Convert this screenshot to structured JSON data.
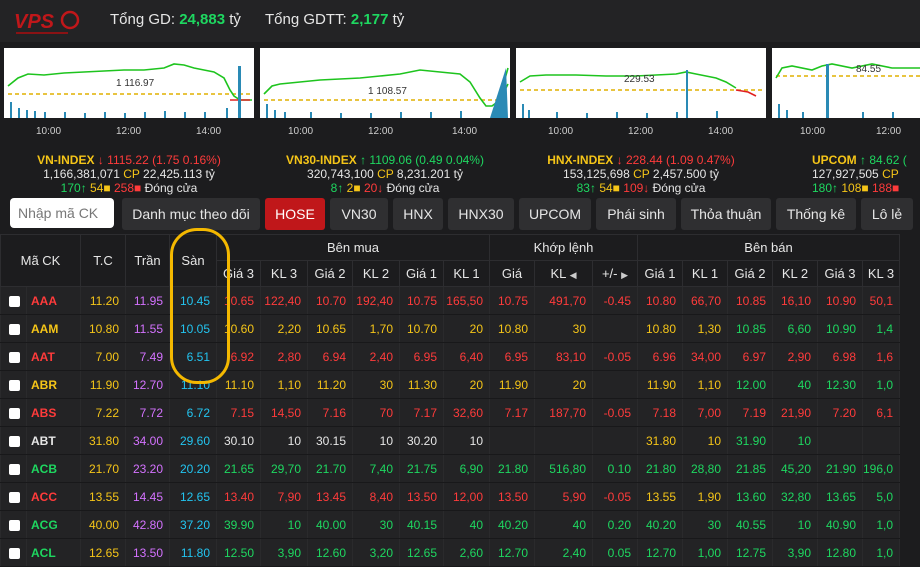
{
  "header": {
    "total_gd_label": "Tổng GD:",
    "total_gd_value": "24,883",
    "total_gd_unit": "tỷ",
    "total_gdtt_label": "Tổng GDTT:",
    "total_gdtt_value": "2,177",
    "total_gdtt_unit": "tỷ"
  },
  "indices": [
    {
      "name": "VN-INDEX",
      "value": "1115.22",
      "change": "(1.75  0.16%)",
      "direction": "down",
      "volume": "1,166,381,071",
      "cp_label": "CP",
      "val": "22,425.113",
      "val_unit": "tỷ",
      "adv": "170",
      "unch": "54",
      "dec": "258",
      "status": "Đóng cửa",
      "ref_label": "1 116.97",
      "times": [
        "10:00",
        "12:00",
        "14:00"
      ]
    },
    {
      "name": "VN30-INDEX",
      "value": "1109.06",
      "change": "(0.49  0.04%)",
      "direction": "up",
      "volume": "320,743,100",
      "cp_label": "CP",
      "val": "8,231.201",
      "val_unit": "tỷ",
      "adv": "8",
      "unch": "2",
      "dec": "20",
      "status": "Đóng cửa",
      "ref_label": "1 108.57",
      "times": [
        "10:00",
        "12:00",
        "14:00"
      ]
    },
    {
      "name": "HNX-INDEX",
      "value": "228.44",
      "change": "(1.09  0.47%)",
      "direction": "down",
      "volume": "153,125,698",
      "cp_label": "CP",
      "val": "2,457.500",
      "val_unit": "tỷ",
      "adv": "83",
      "unch": "54",
      "dec": "109",
      "status": "Đóng cửa",
      "ref_label": "229.53",
      "times": [
        "10:00",
        "12:00",
        "14:00"
      ]
    },
    {
      "name": "UPCOM",
      "value": "84.62",
      "change": "(",
      "direction": "up",
      "volume": "127,927,505",
      "cp_label": "CP",
      "val": "",
      "val_unit": "",
      "adv": "180",
      "unch": "108",
      "dec": "188",
      "status": "",
      "ref_label": "84.55",
      "times": [
        "10:00",
        "12:00"
      ]
    }
  ],
  "search": {
    "placeholder": "Nhập mã CK"
  },
  "tabs": [
    {
      "label": "Danh mục theo dõi"
    },
    {
      "label": "HOSE"
    },
    {
      "label": "VN30"
    },
    {
      "label": "HNX"
    },
    {
      "label": "HNX30"
    },
    {
      "label": "UPCOM"
    },
    {
      "label": "Phái sinh"
    },
    {
      "label": "Thỏa thuận"
    },
    {
      "label": "Thống kê"
    },
    {
      "label": "Lô lẻ"
    }
  ],
  "table": {
    "headers": {
      "symbol": "Mã CK",
      "ref": "T.C",
      "ceil": "Trần",
      "floor": "Sàn",
      "buy_group": "Bên mua",
      "match_group": "Khớp lệnh",
      "sell_group": "Bên bán",
      "gia3": "Giá 3",
      "kl3": "KL 3",
      "gia2": "Giá 2",
      "kl2": "KL 2",
      "gia1": "Giá 1",
      "kl1": "KL 1",
      "m_gia": "Giá",
      "m_kl": "KL",
      "m_chg": "+/-",
      "s_gia1": "Giá 1",
      "s_kl1": "KL 1",
      "s_gia2": "Giá 2",
      "s_kl2": "KL 2",
      "s_gia3": "Giá 3",
      "s_kl3": "KL 3"
    },
    "rows": [
      {
        "sym": "AAA",
        "tc": "11.20",
        "tran": "11.95",
        "san": "10.45",
        "b3": "10.65",
        "bk3": "122,40",
        "b2": "10.70",
        "bk2": "192,40",
        "b1": "10.75",
        "bk1": "165,50",
        "mg": "10.75",
        "mk": "491,70",
        "mc": "-0.45",
        "s1": "10.80",
        "sk1": "66,70",
        "s2": "10.85",
        "sk2": "16,10",
        "s3": "10.90",
        "sk3": "50,1",
        "color": "down",
        "sc": [
          "down",
          "down",
          "down",
          "down",
          "down",
          "down"
        ]
      },
      {
        "sym": "AAM",
        "tc": "10.80",
        "tran": "11.55",
        "san": "10.05",
        "b3": "10.60",
        "bk3": "2,20",
        "b2": "10.65",
        "bk2": "1,70",
        "b1": "10.70",
        "bk1": "20",
        "mg": "10.80",
        "mk": "30",
        "mc": "",
        "s1": "10.80",
        "sk1": "1,30",
        "s2": "10.85",
        "sk2": "6,60",
        "s3": "10.90",
        "sk3": "1,4",
        "color": "ref",
        "sc": [
          "ref",
          "ref",
          "up",
          "up",
          "up",
          "up"
        ]
      },
      {
        "sym": "AAT",
        "tc": "7.00",
        "tran": "7.49",
        "san": "6.51",
        "b3": "6.92",
        "bk3": "2,80",
        "b2": "6.94",
        "bk2": "2,40",
        "b1": "6.95",
        "bk1": "6,40",
        "mg": "6.95",
        "mk": "83,10",
        "mc": "-0.05",
        "s1": "6.96",
        "sk1": "34,00",
        "s2": "6.97",
        "sk2": "2,90",
        "s3": "6.98",
        "sk3": "1,6",
        "color": "down",
        "sc": [
          "down",
          "down",
          "down",
          "down",
          "down",
          "down"
        ]
      },
      {
        "sym": "ABR",
        "tc": "11.90",
        "tran": "12.70",
        "san": "11.10",
        "b3": "11.10",
        "bk3": "1,10",
        "b2": "11.20",
        "bk2": "30",
        "b1": "11.30",
        "bk1": "20",
        "mg": "11.90",
        "mk": "20",
        "mc": "",
        "s1": "11.90",
        "sk1": "1,10",
        "s2": "12.00",
        "sk2": "40",
        "s3": "12.30",
        "sk3": "1,0",
        "color": "ref",
        "sc": [
          "ref",
          "ref",
          "up",
          "up",
          "up",
          "up"
        ]
      },
      {
        "sym": "ABS",
        "tc": "7.22",
        "tran": "7.72",
        "san": "6.72",
        "b3": "7.15",
        "bk3": "14,50",
        "b2": "7.16",
        "bk2": "70",
        "b1": "7.17",
        "bk1": "32,60",
        "mg": "7.17",
        "mk": "187,70",
        "mc": "-0.05",
        "s1": "7.18",
        "sk1": "7,00",
        "s2": "7.19",
        "sk2": "21,90",
        "s3": "7.20",
        "sk3": "6,1",
        "color": "down",
        "sc": [
          "down",
          "down",
          "down",
          "down",
          "down",
          "down"
        ]
      },
      {
        "sym": "ABT",
        "tc": "31.80",
        "tran": "34.00",
        "san": "29.60",
        "b3": "30.10",
        "bk3": "10",
        "b2": "30.15",
        "bk2": "10",
        "b1": "30.20",
        "bk1": "10",
        "mg": "",
        "mk": "",
        "mc": "",
        "s1": "31.80",
        "sk1": "10",
        "s2": "31.90",
        "sk2": "10",
        "s3": "",
        "sk3": "",
        "color": "white",
        "sc": [
          "ref",
          "ref",
          "up",
          "up",
          "up",
          "up"
        ]
      },
      {
        "sym": "ACB",
        "tc": "21.70",
        "tran": "23.20",
        "san": "20.20",
        "b3": "21.65",
        "bk3": "29,70",
        "b2": "21.70",
        "bk2": "7,40",
        "b1": "21.75",
        "bk1": "6,90",
        "mg": "21.80",
        "mk": "516,80",
        "mc": "0.10",
        "s1": "21.80",
        "sk1": "28,80",
        "s2": "21.85",
        "sk2": "45,20",
        "s3": "21.90",
        "sk3": "196,0",
        "color": "up",
        "sc": [
          "up",
          "up",
          "up",
          "up",
          "up",
          "up"
        ]
      },
      {
        "sym": "ACC",
        "tc": "13.55",
        "tran": "14.45",
        "san": "12.65",
        "b3": "13.40",
        "bk3": "7,90",
        "b2": "13.45",
        "bk2": "8,40",
        "b1": "13.50",
        "bk1": "12,00",
        "mg": "13.50",
        "mk": "5,90",
        "mc": "-0.05",
        "s1": "13.55",
        "sk1": "1,90",
        "s2": "13.60",
        "sk2": "32,80",
        "s3": "13.65",
        "sk3": "5,0",
        "color": "down",
        "sc": [
          "ref",
          "ref",
          "up",
          "up",
          "up",
          "up"
        ]
      },
      {
        "sym": "ACG",
        "tc": "40.00",
        "tran": "42.80",
        "san": "37.20",
        "b3": "39.90",
        "bk3": "10",
        "b2": "40.00",
        "bk2": "30",
        "b1": "40.15",
        "bk1": "40",
        "mg": "40.20",
        "mk": "40",
        "mc": "0.20",
        "s1": "40.20",
        "sk1": "30",
        "s2": "40.55",
        "sk2": "10",
        "s3": "40.90",
        "sk3": "1,0",
        "color": "up",
        "sc": [
          "up",
          "up",
          "up",
          "up",
          "up",
          "up"
        ]
      },
      {
        "sym": "ACL",
        "tc": "12.65",
        "tran": "13.50",
        "san": "11.80",
        "b3": "12.50",
        "bk3": "3,90",
        "b2": "12.60",
        "bk2": "3,20",
        "b1": "12.65",
        "bk1": "2,60",
        "mg": "12.70",
        "mk": "2,40",
        "mc": "0.05",
        "s1": "12.70",
        "sk1": "1,00",
        "s2": "12.75",
        "sk2": "3,90",
        "s3": "12.80",
        "sk3": "1,0",
        "color": "up",
        "sc": [
          "up",
          "up",
          "up",
          "up",
          "up",
          "up"
        ]
      }
    ]
  }
}
